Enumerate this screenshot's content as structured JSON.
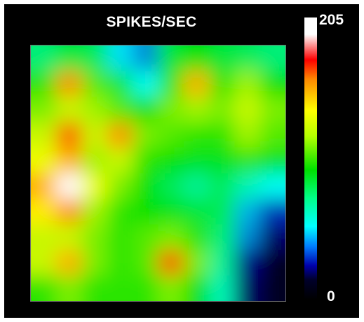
{
  "chart_data": {
    "type": "heatmap",
    "title": "SPIKES/SEC",
    "colorbar": {
      "min": 0,
      "max": 205,
      "min_label": "0",
      "max_label": "205",
      "colors": [
        "#000000",
        "#0000aa",
        "#00ffff",
        "#00e000",
        "#ffff00",
        "#ff0000",
        "#ffffff"
      ]
    },
    "grid_size": [
      10,
      10
    ],
    "values": [
      [
        75,
        85,
        80,
        50,
        40,
        85,
        95,
        85,
        80,
        75
      ],
      [
        100,
        145,
        105,
        85,
        55,
        100,
        140,
        100,
        115,
        95
      ],
      [
        110,
        120,
        115,
        105,
        95,
        110,
        115,
        110,
        120,
        110
      ],
      [
        120,
        155,
        120,
        145,
        110,
        105,
        100,
        100,
        115,
        105
      ],
      [
        125,
        140,
        115,
        120,
        100,
        95,
        90,
        90,
        100,
        90
      ],
      [
        140,
        205,
        125,
        110,
        95,
        80,
        70,
        80,
        65,
        55
      ],
      [
        130,
        145,
        115,
        100,
        95,
        90,
        85,
        80,
        45,
        30
      ],
      [
        120,
        120,
        110,
        100,
        105,
        110,
        100,
        75,
        40,
        15
      ],
      [
        120,
        140,
        110,
        100,
        105,
        155,
        110,
        70,
        20,
        5
      ],
      [
        100,
        110,
        100,
        100,
        100,
        110,
        95,
        65,
        15,
        5
      ]
    ]
  }
}
